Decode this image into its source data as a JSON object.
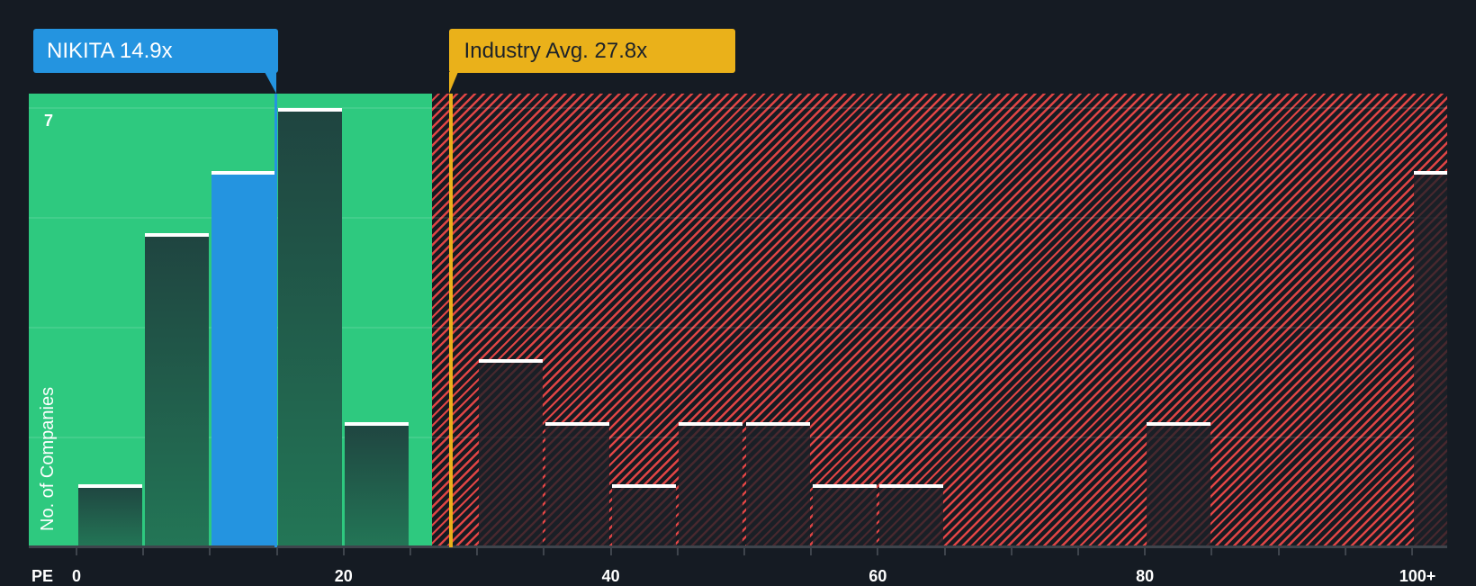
{
  "chart_data": {
    "type": "bar",
    "title": "",
    "xlabel": "PE",
    "ylabel": "No. of Companies",
    "x_tick_labels": [
      "0",
      "20",
      "40",
      "60",
      "80",
      "100+"
    ],
    "y_tick_labels": [
      "7"
    ],
    "ylim": [
      0,
      7
    ],
    "xlim": [
      -3.6,
      102.6
    ],
    "bin_width": 5,
    "categories": [
      "0-5",
      "5-10",
      "10-15",
      "15-20",
      "20-25",
      "25-30",
      "30-35",
      "35-40",
      "40-45",
      "45-50",
      "50-55",
      "55-60",
      "60-65",
      "65-70",
      "70-75",
      "75-80",
      "80-85",
      "85-90",
      "90-95",
      "95-100",
      "100+"
    ],
    "values": [
      1,
      5,
      6,
      7,
      2,
      0,
      3,
      2,
      1,
      2,
      2,
      1,
      1,
      0,
      0,
      0,
      2,
      0,
      0,
      0,
      6
    ],
    "highlight_bin": "10-15",
    "annotations": [
      {
        "label": "NIKITA 14.9x",
        "value": 14.9,
        "color": "#2494e0"
      },
      {
        "label": "Industry Avg. 27.8x",
        "value": 27.8,
        "color": "#eab11a"
      }
    ],
    "regions": [
      {
        "name": "below-average",
        "from": -3.6,
        "to": 26.6,
        "color": "#2ec97f"
      },
      {
        "name": "above-average",
        "from": 26.6,
        "to": 102.6,
        "color": "#e04545",
        "pattern": "diagonal-hatch"
      }
    ],
    "grid": true,
    "legend": null
  },
  "labels": {
    "subject": "NIKITA 14.9x",
    "industry": "Industry Avg. 27.8x",
    "x_axis": "PE",
    "y_axis": "No. of Companies",
    "y_max": "7",
    "ticks": [
      "0",
      "20",
      "40",
      "60",
      "80",
      "100+"
    ]
  },
  "colors": {
    "background": "#151b23",
    "green_zone": "#2ec97f",
    "red_hatch": "#e04545",
    "subject": "#2494e0",
    "industry": "#eab11a"
  }
}
